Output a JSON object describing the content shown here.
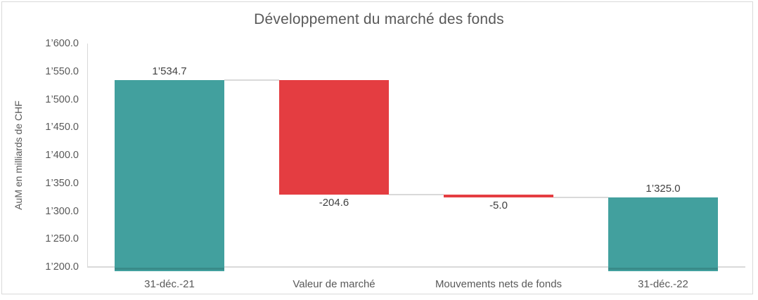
{
  "chart_data": {
    "type": "bar",
    "subtype": "waterfall",
    "title": "Développement du marché des fonds",
    "xlabel": "",
    "ylabel": "AuM en milliards de CHF",
    "categories": [
      "31-déc.-21",
      "Valeur de marché",
      "Mouvements nets de fonds",
      "31-déc.-22"
    ],
    "series": [
      {
        "name": "AuM",
        "values": [
          1534.7,
          -204.6,
          -5.0,
          1325.0
        ],
        "bar_types": [
          "total",
          "delta",
          "delta",
          "total"
        ],
        "data_labels": [
          "1’534.7",
          "-204.6",
          "-5.0",
          "1’325.0"
        ]
      }
    ],
    "ylim": [
      1200,
      1600
    ],
    "ytick_step": 50,
    "ytick_labels": [
      "1’600.0",
      "1’550.0",
      "1’500.0",
      "1’450.0",
      "1’400.0",
      "1’350.0",
      "1’300.0",
      "1’250.0",
      "1’200.0"
    ],
    "grid": "off",
    "legend": "none",
    "colors": {
      "total_bar": "#42A09E",
      "negative_bar": "#E43D41",
      "axis_line": "#D9D9D9",
      "connector_line": "#D9D9D9",
      "title_text": "#595959",
      "tick_text": "#595959",
      "data_label_text": "#404040"
    }
  }
}
